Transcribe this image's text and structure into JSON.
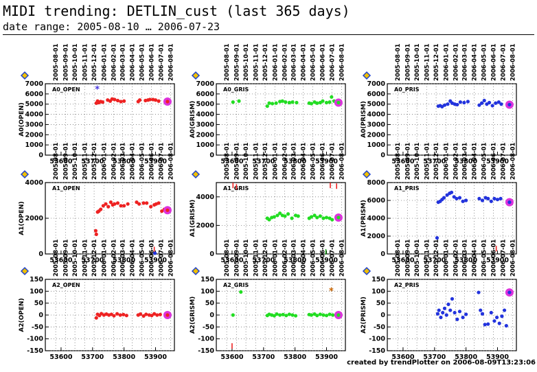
{
  "title": "MIDI trending: DETLIN_cust (last 365 days)",
  "subtitle": "date range: 2005-08-10 … 2006-07-23",
  "footer": "created by trendPlotter on 2006-08-09T13:23:06",
  "colors": {
    "open": "#ee2222",
    "grism": "#22dd22",
    "prism": "#2233dd",
    "latest": "#dd33dd",
    "diamond_fill": "#f0c000",
    "diamond_edge": "#2244cc"
  },
  "date_ticks": [
    "2005-08-01",
    "2005-09-01",
    "2005-10-01",
    "2005-11-01",
    "2005-12-01",
    "2006-01-01",
    "2006-02-01",
    "2006-03-01",
    "2006-04-01",
    "2006-05-01",
    "2006-06-01",
    "2006-07-01",
    "2006-08-01"
  ],
  "chart_data": [
    {
      "type": "scatter",
      "title": "A0_OPEN",
      "ylabel": "A0(OPEN)",
      "series_color": "open",
      "ylim": [
        0,
        7000
      ],
      "yticks": [
        0,
        1000,
        2000,
        3000,
        4000,
        5000,
        6000,
        7000
      ],
      "xlim": [
        53550,
        53960
      ],
      "xticks": [
        53600,
        53700,
        53800,
        53900
      ],
      "x": [
        53712,
        53716,
        53720,
        53726,
        53732,
        53748,
        53756,
        53762,
        53770,
        53780,
        53790,
        53800,
        53845,
        53850,
        53868,
        53876,
        53882,
        53892,
        53900,
        53910
      ],
      "y": [
        5100,
        5300,
        5150,
        5250,
        5200,
        5400,
        5300,
        5500,
        5450,
        5350,
        5250,
        5300,
        5250,
        5400,
        5350,
        5400,
        5450,
        5450,
        5400,
        5300
      ],
      "latest": [
        53938,
        5250
      ],
      "marks": [
        {
          "x": 53715,
          "y": 6500,
          "symbol": "*",
          "color": "#4433dd"
        }
      ]
    },
    {
      "type": "scatter",
      "title": "A0_GRIS",
      "ylabel": "A0(GRISM)",
      "series_color": "grism",
      "ylim": [
        0,
        7000
      ],
      "yticks": [
        0,
        1000,
        2000,
        3000,
        4000,
        5000,
        6000,
        7000
      ],
      "xlim": [
        53550,
        53960
      ],
      "xticks": [
        53600,
        53700,
        53800,
        53900
      ],
      "x": [
        53603,
        53622,
        53712,
        53718,
        53728,
        53740,
        53752,
        53760,
        53770,
        53782,
        53792,
        53805,
        53845,
        53852,
        53862,
        53870,
        53880,
        53888,
        53900,
        53910,
        53916,
        53924
      ],
      "y": [
        5200,
        5300,
        4800,
        5100,
        5050,
        5100,
        5250,
        5300,
        5200,
        5150,
        5200,
        5150,
        5100,
        5050,
        5200,
        5100,
        5150,
        5300,
        5150,
        5200,
        5700,
        5300
      ],
      "latest": [
        53938,
        5150
      ],
      "marks": []
    },
    {
      "type": "scatter",
      "title": "A0_PRIS",
      "ylabel": "A0(PRISM)",
      "series_color": "prism",
      "ylim": [
        0,
        7000
      ],
      "yticks": [
        0,
        1000,
        2000,
        3000,
        4000,
        5000,
        6000,
        7000
      ],
      "xlim": [
        53550,
        53960
      ],
      "xticks": [
        53600,
        53700,
        53800,
        53900
      ],
      "x": [
        53712,
        53718,
        53724,
        53732,
        53742,
        53750,
        53756,
        53764,
        53772,
        53782,
        53794,
        53806,
        53842,
        53850,
        53858,
        53866,
        53874,
        53884,
        53894,
        53904,
        53912
      ],
      "y": [
        4800,
        4850,
        4750,
        4900,
        5000,
        5300,
        5100,
        5000,
        4950,
        5200,
        5150,
        5250,
        4900,
        5100,
        5350,
        5000,
        5150,
        4850,
        5100,
        5200,
        5000
      ],
      "latest": [
        53938,
        4950
      ],
      "marks": []
    },
    {
      "type": "scatter",
      "title": "A1_OPEN",
      "ylabel": "A1(OPEN)",
      "series_color": "open",
      "ylim": [
        0,
        4000
      ],
      "yticks": [
        0,
        2000,
        4000
      ],
      "xlim": [
        53550,
        53960
      ],
      "xticks": [
        53600,
        53700,
        53800,
        53900
      ],
      "x": [
        53710,
        53712,
        53716,
        53720,
        53726,
        53734,
        53742,
        53750,
        53758,
        53764,
        53770,
        53780,
        53790,
        53800,
        53812,
        53840,
        53848,
        53862,
        53872,
        53885,
        53896,
        53902,
        53910,
        53920,
        53928
      ],
      "y": [
        1300,
        1100,
        2350,
        2400,
        2500,
        2700,
        2800,
        2650,
        2900,
        2750,
        2800,
        2850,
        2700,
        2700,
        2800,
        2900,
        2800,
        2850,
        2850,
        2650,
        2750,
        2800,
        2850,
        2400,
        2500
      ],
      "latest": [
        53938,
        2450
      ],
      "marks": [
        {
          "x": 53896,
          "y": 250,
          "symbol": "|",
          "color": "#ee2222"
        },
        {
          "x": 53898,
          "y": 40,
          "symbol": "o",
          "color": "#2233dd"
        }
      ]
    },
    {
      "type": "scatter",
      "title": "A1_GRIS",
      "ylabel": "A1(GRISM)",
      "series_color": "grism",
      "ylim": [
        0,
        5000
      ],
      "yticks": [
        0,
        2000,
        4000
      ],
      "xlim": [
        53550,
        53960
      ],
      "xticks": [
        53600,
        53700,
        53800,
        53900
      ],
      "x": [
        53712,
        53718,
        53726,
        53734,
        53744,
        53752,
        53760,
        53768,
        53778,
        53790,
        53802,
        53810,
        53845,
        53852,
        53862,
        53870,
        53880,
        53890,
        53900,
        53910,
        53918
      ],
      "y": [
        2500,
        2400,
        2550,
        2600,
        2700,
        2850,
        2700,
        2650,
        2800,
        2500,
        2700,
        2650,
        2500,
        2600,
        2700,
        2550,
        2650,
        2500,
        2550,
        2500,
        2400
      ],
      "latest": [
        53938,
        2550
      ],
      "marks": [
        {
          "x": 53603,
          "y": 4800,
          "symbol": "|",
          "color": "#ee2222"
        },
        {
          "x": 53614,
          "y": 4700,
          "symbol": "|",
          "color": "#ee2222"
        },
        {
          "x": 53912,
          "y": 4800,
          "symbol": "|",
          "color": "#ee2222"
        },
        {
          "x": 53932,
          "y": 4750,
          "symbol": "|",
          "color": "#ee2222"
        },
        {
          "x": 53898,
          "y": 150,
          "symbol": "|",
          "color": "#22aa22"
        }
      ]
    },
    {
      "type": "scatter",
      "title": "A1_PRIS",
      "ylabel": "A1(PRISM)",
      "series_color": "prism",
      "ylim": [
        0,
        8000
      ],
      "yticks": [
        0,
        2000,
        4000,
        6000,
        8000
      ],
      "xlim": [
        53550,
        53960
      ],
      "xticks": [
        53600,
        53700,
        53800,
        53900
      ],
      "x": [
        53708,
        53712,
        53718,
        53724,
        53730,
        53740,
        53748,
        53754,
        53762,
        53770,
        53780,
        53790,
        53800,
        53842,
        53852,
        53862,
        53870,
        53880,
        53890,
        53900,
        53910
      ],
      "y": [
        1800,
        5800,
        5900,
        6100,
        6300,
        6600,
        6800,
        6900,
        6400,
        6200,
        6300,
        5900,
        6000,
        6200,
        6000,
        6300,
        6200,
        5900,
        6200,
        6100,
        6200
      ],
      "latest": [
        53938,
        5800
      ],
      "marks": [
        {
          "x": 53896,
          "y": 600,
          "symbol": "|",
          "color": "#ee2222"
        }
      ]
    },
    {
      "type": "scatter",
      "title": "A2_OPEN",
      "ylabel": "A2(OPEN)",
      "series_color": "open",
      "ylim": [
        -150,
        150
      ],
      "yticks": [
        -150,
        -100,
        -50,
        0,
        50,
        100,
        150
      ],
      "xlim": [
        53550,
        53960
      ],
      "xticks": [
        53600,
        53700,
        53800,
        53900
      ],
      "x": [
        53712,
        53716,
        53722,
        53728,
        53736,
        53744,
        53752,
        53760,
        53768,
        53778,
        53788,
        53798,
        53808,
        53845,
        53852,
        53862,
        53870,
        53880,
        53888,
        53896,
        53905,
        53915
      ],
      "y": [
        -12,
        3,
        -2,
        6,
        0,
        4,
        0,
        3,
        -3,
        5,
        0,
        2,
        -2,
        0,
        4,
        -4,
        3,
        0,
        -2,
        5,
        0,
        2
      ],
      "latest": [
        53938,
        0
      ],
      "marks": []
    },
    {
      "type": "scatter",
      "title": "A2_GRIS",
      "ylabel": "A2(GRISM)",
      "series_color": "grism",
      "ylim": [
        -150,
        150
      ],
      "yticks": [
        -150,
        -100,
        -50,
        0,
        50,
        100,
        150
      ],
      "xlim": [
        53550,
        53960
      ],
      "xticks": [
        53600,
        53700,
        53800,
        53900
      ],
      "x": [
        53603,
        53628,
        53712,
        53718,
        53726,
        53734,
        53742,
        53752,
        53762,
        53772,
        53782,
        53792,
        53802,
        53845,
        53852,
        53862,
        53870,
        53880,
        53890,
        53900,
        53910,
        53920
      ],
      "y": [
        0,
        97,
        -2,
        3,
        0,
        -3,
        4,
        0,
        2,
        -2,
        3,
        0,
        -3,
        2,
        0,
        4,
        -2,
        3,
        0,
        -2,
        3,
        0
      ],
      "latest": [
        53938,
        0
      ],
      "marks": [
        {
          "x": 53600,
          "y": -130,
          "symbol": "|",
          "color": "#ee2222"
        },
        {
          "x": 53915,
          "y": 103,
          "symbol": "*",
          "color": "#cc6600"
        }
      ]
    },
    {
      "type": "scatter",
      "title": "A2_PRIS",
      "ylabel": "A2(PRISM)",
      "series_color": "prism",
      "ylim": [
        -150,
        150
      ],
      "yticks": [
        -150,
        -100,
        -50,
        0,
        50,
        100,
        150
      ],
      "xlim": [
        53550,
        53960
      ],
      "xticks": [
        53600,
        53700,
        53800,
        53900
      ],
      "x": [
        53710,
        53714,
        53720,
        53726,
        53732,
        53738,
        53744,
        53750,
        53756,
        53764,
        53772,
        53780,
        53790,
        53800,
        53840,
        53846,
        53852,
        53860,
        53870,
        53880,
        53890,
        53898,
        53906,
        53914,
        53922,
        53928
      ],
      "y": [
        5,
        20,
        -10,
        10,
        28,
        0,
        45,
        20,
        68,
        10,
        -18,
        15,
        -10,
        3,
        95,
        20,
        5,
        -40,
        -38,
        10,
        -25,
        -10,
        -35,
        -5,
        20,
        -45
      ],
      "latest": [
        53938,
        95
      ],
      "marks": []
    }
  ]
}
